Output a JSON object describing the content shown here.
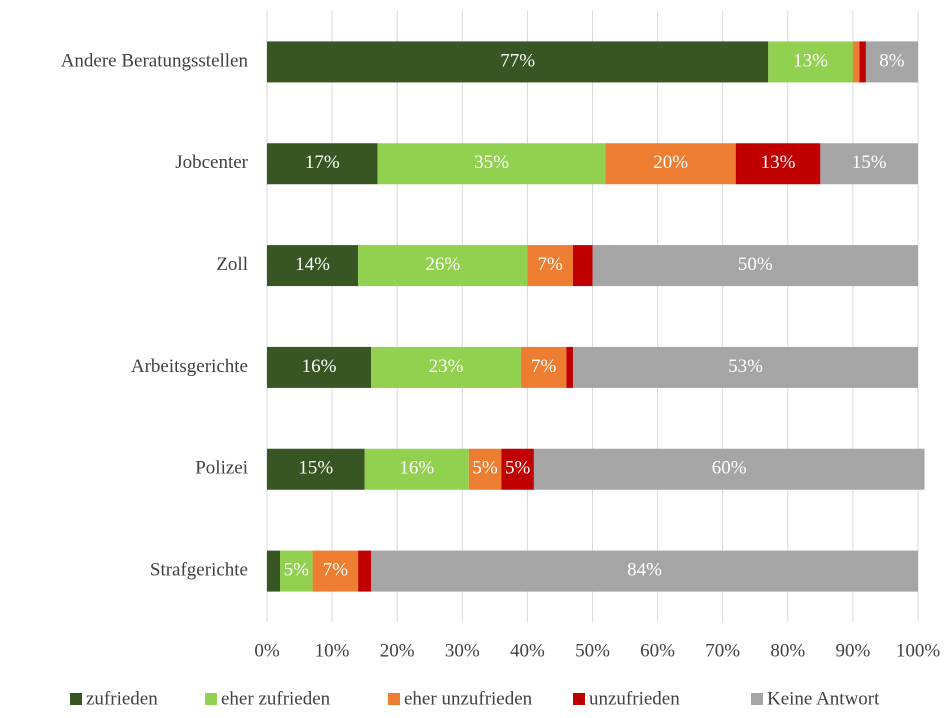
{
  "chart_data": {
    "type": "stacked_barh",
    "categories": [
      "Andere Beratungsstellen",
      "Jobcenter",
      "Zoll",
      "Arbeitsgerichte",
      "Polizei",
      "Strafgerichte"
    ],
    "series": [
      {
        "name": "zufrieden",
        "color": "#375623",
        "values": [
          77,
          17,
          14,
          16,
          15,
          2
        ],
        "value_labels": [
          "77%",
          "17%",
          "14%",
          "16%",
          "15%",
          null
        ]
      },
      {
        "name": "eher zufrieden",
        "color": "#92d050",
        "values": [
          13,
          35,
          26,
          23,
          16,
          5
        ],
        "value_labels": [
          "13%",
          "35%",
          "26%",
          "23%",
          "16%",
          "5%"
        ]
      },
      {
        "name": "eher unzufrieden",
        "color": "#ed7d31",
        "values": [
          1,
          20,
          7,
          7,
          5,
          7
        ],
        "value_labels": [
          null,
          "20%",
          "7%",
          "7%",
          "5%",
          "7%"
        ]
      },
      {
        "name": "unzufrieden",
        "color": "#c00000",
        "values": [
          1,
          13,
          3,
          1,
          5,
          2
        ],
        "value_labels": [
          null,
          "13%",
          null,
          null,
          "5%",
          null
        ]
      },
      {
        "name": "Keine Antwort",
        "color": "#a5a5a5",
        "values": [
          8,
          15,
          50,
          53,
          60,
          84
        ],
        "value_labels": [
          "8%",
          "15%",
          "50%",
          "53%",
          "60%",
          "84%"
        ]
      }
    ],
    "xlim": [
      0,
      100
    ],
    "xticks": [
      {
        "value": 0,
        "label": "0%"
      },
      {
        "value": 10,
        "label": "10%"
      },
      {
        "value": 20,
        "label": "20%"
      },
      {
        "value": 30,
        "label": "30%"
      },
      {
        "value": 40,
        "label": "40%"
      },
      {
        "value": 50,
        "label": "50%"
      },
      {
        "value": 60,
        "label": "60%"
      },
      {
        "value": 70,
        "label": "70%"
      },
      {
        "value": 80,
        "label": "80%"
      },
      {
        "value": 90,
        "label": "90%"
      },
      {
        "value": 100,
        "label": "100%"
      }
    ],
    "grid": true,
    "legend": "bottom"
  }
}
